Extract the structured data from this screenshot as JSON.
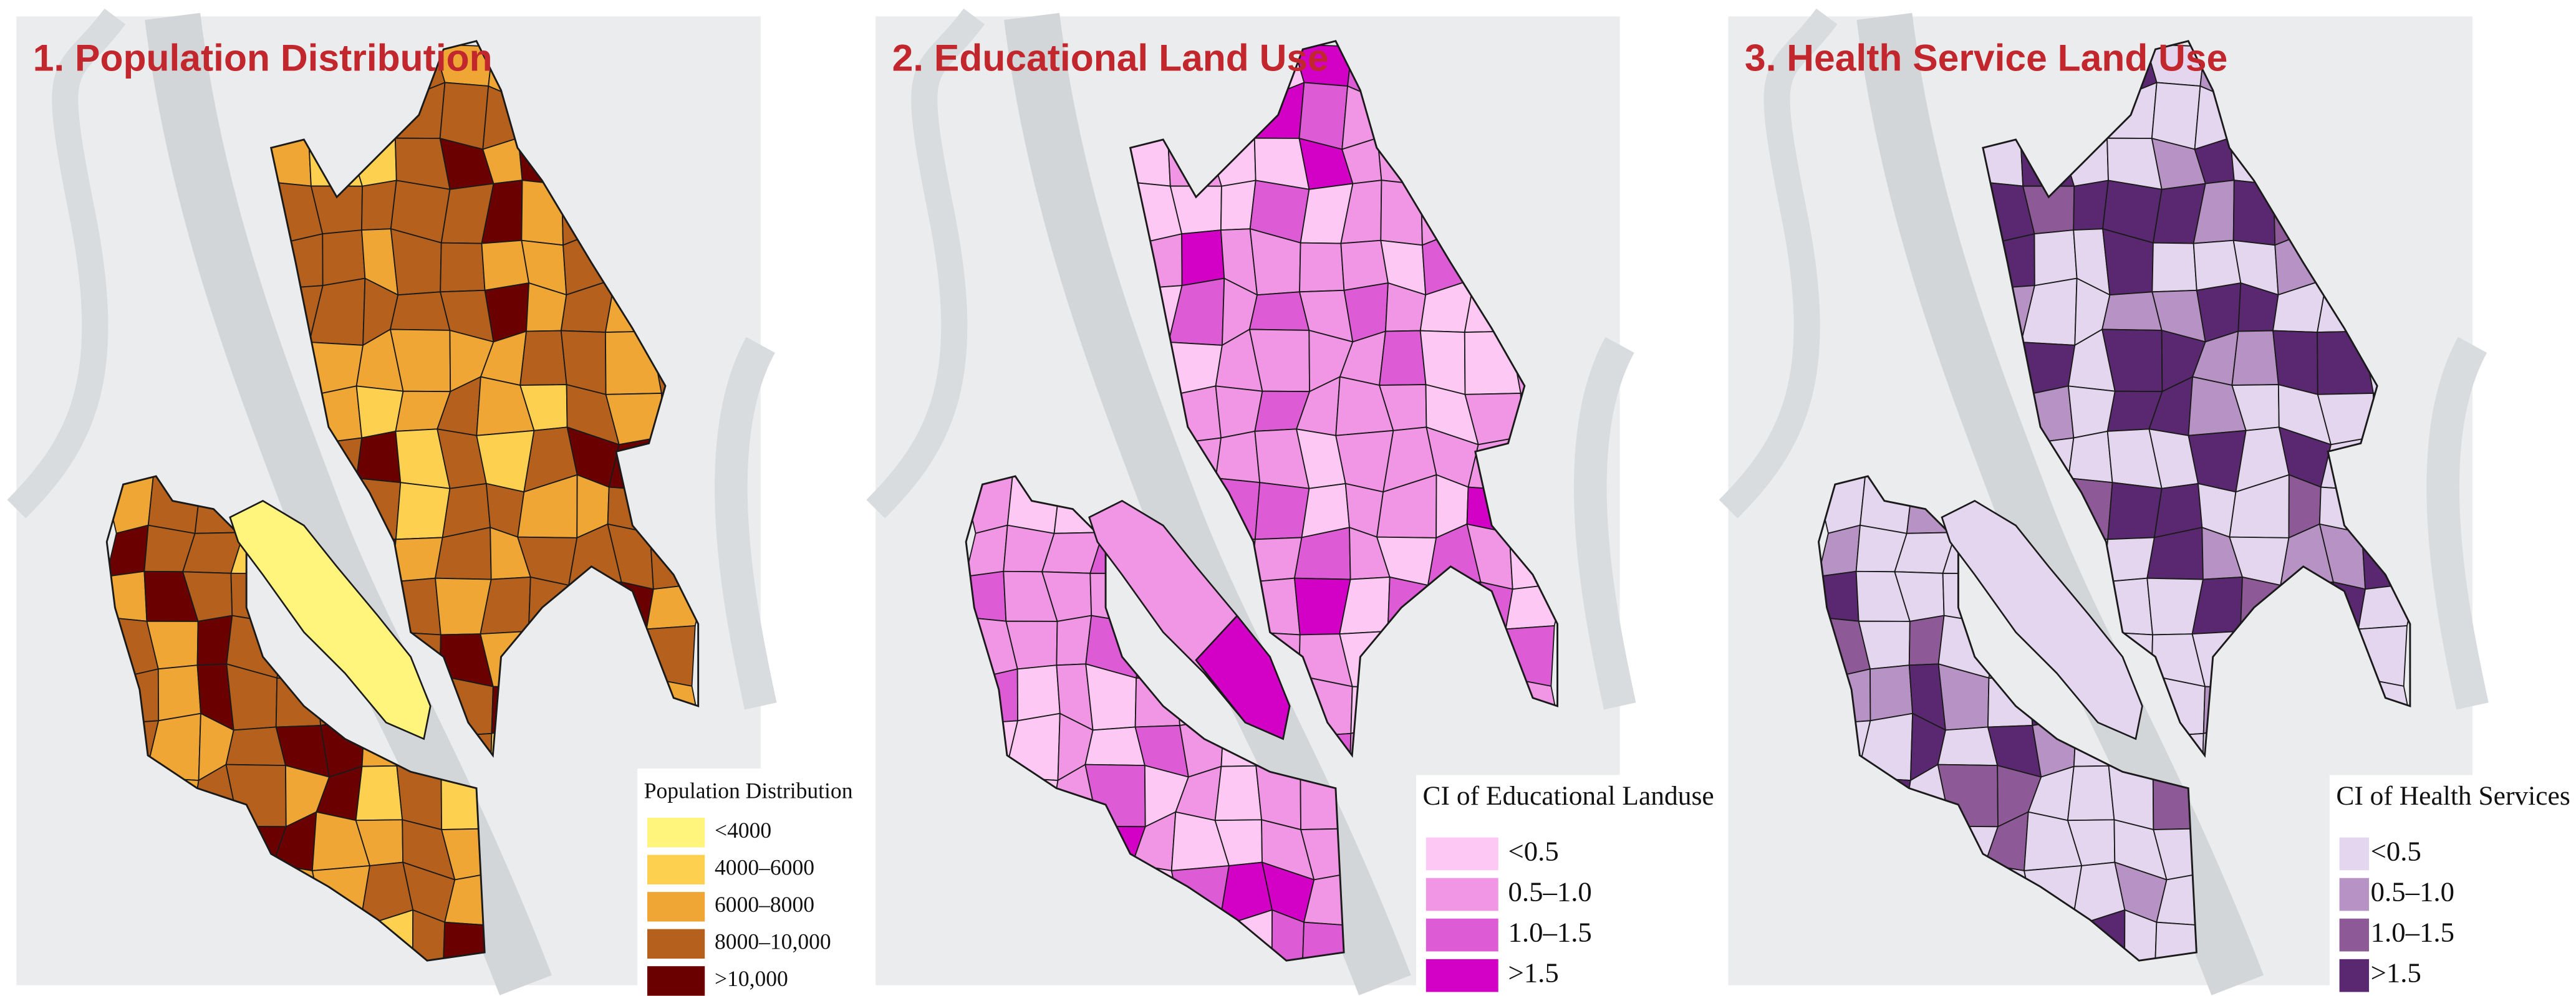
{
  "panels": [
    {
      "title": "1. Population Distribution",
      "legend": {
        "title": "Population Distribution",
        "items": [
          {
            "label": "<4000",
            "color": "#fff47c"
          },
          {
            "label": "4000–6000",
            "color": "#fdd050"
          },
          {
            "label": "6000–8000",
            "color": "#efa634"
          },
          {
            "label": "8000–10,000",
            "color": "#b5601c"
          },
          {
            "label": ">10,000",
            "color": "#6b0000"
          }
        ]
      }
    },
    {
      "title": "2. Educational Land Use",
      "legend": {
        "title": "CI of Educational Landuse",
        "items": [
          {
            "label": "<0.5",
            "color": "#fdc8f4"
          },
          {
            "label": "0.5–1.0",
            "color": "#f096e5"
          },
          {
            "label": "1.0–1.5",
            "color": "#dd5cd5"
          },
          {
            "label": ">1.5",
            "color": "#d300c6"
          }
        ]
      }
    },
    {
      "title": "3. Health Service Land Use",
      "legend": {
        "title": "CI of Health Services",
        "items": [
          {
            "label": "<0.5",
            "color": "#e4d6ef"
          },
          {
            "label": "0.5–1.0",
            "color": "#b793c5"
          },
          {
            "label": "1.0–1.5",
            "color": "#8d5996"
          },
          {
            "label": ">1.5",
            "color": "#5a2870"
          }
        ]
      }
    }
  ]
}
